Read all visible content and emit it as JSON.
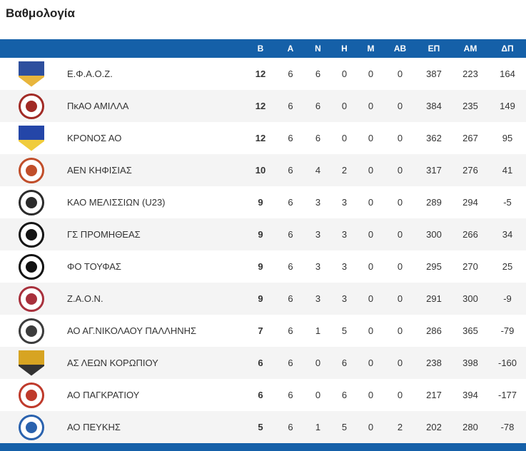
{
  "page": {
    "title": "Βαθμολογία"
  },
  "colors": {
    "header_bg": "#1560a8",
    "row_alt_bg": "#f4f4f4",
    "text": "#333333"
  },
  "table": {
    "columns": [
      "Β",
      "Α",
      "Ν",
      "Η",
      "Μ",
      "ΑΒ",
      "ΕΠ",
      "ΑΜ",
      "ΔΠ"
    ],
    "rows": [
      {
        "team": "Ε.Φ.Α.Ο.Ζ.",
        "logo": {
          "type": "shield",
          "colors": [
            "#2e4f9e",
            "#e8b53c"
          ]
        },
        "stats": [
          12,
          6,
          6,
          0,
          0,
          0,
          387,
          223,
          164
        ]
      },
      {
        "team": "ΠκΑΟ ΑΜΙΛΛΑ",
        "logo": {
          "type": "circle",
          "colors": [
            "#a12a25",
            "#eeeeee"
          ]
        },
        "stats": [
          12,
          6,
          6,
          0,
          0,
          0,
          384,
          235,
          149
        ]
      },
      {
        "team": "ΚΡΟΝΟΣ ΑΟ",
        "logo": {
          "type": "shield",
          "colors": [
            "#2446a8",
            "#f0cc3c"
          ]
        },
        "stats": [
          12,
          6,
          6,
          0,
          0,
          0,
          362,
          267,
          95
        ]
      },
      {
        "team": "ΑΕΝ ΚΗΦΙΣΙΑΣ",
        "logo": {
          "type": "circle",
          "colors": [
            "#c14e2a",
            "#f5f5f5"
          ]
        },
        "stats": [
          10,
          6,
          4,
          2,
          0,
          0,
          317,
          276,
          41
        ]
      },
      {
        "team": "ΚΑΟ ΜΕΛΙΣΣΙΩΝ (U23)",
        "logo": {
          "type": "circle",
          "colors": [
            "#2b2b2b",
            "#e0e0e0"
          ]
        },
        "stats": [
          9,
          6,
          3,
          3,
          0,
          0,
          289,
          294,
          -5
        ]
      },
      {
        "team": "ΓΣ ΠΡΟΜΗΘΕΑΣ",
        "logo": {
          "type": "circle",
          "colors": [
            "#141414",
            "#cc3333"
          ]
        },
        "stats": [
          9,
          6,
          3,
          3,
          0,
          0,
          300,
          266,
          34
        ]
      },
      {
        "team": "ΦΟ ΤΟΥΦΑΣ",
        "logo": {
          "type": "circle",
          "colors": [
            "#111111",
            "#111111"
          ]
        },
        "stats": [
          9,
          6,
          3,
          3,
          0,
          0,
          295,
          270,
          25
        ]
      },
      {
        "team": "Ζ.Α.Ο.Ν.",
        "logo": {
          "type": "circle",
          "colors": [
            "#a8303c",
            "#eeeeee"
          ]
        },
        "stats": [
          9,
          6,
          3,
          3,
          0,
          0,
          291,
          300,
          -9
        ]
      },
      {
        "team": "ΑΟ ΑΓ.ΝΙΚΟΛΑΟΥ ΠΑΛΛΗΝΗΣ",
        "logo": {
          "type": "circle",
          "colors": [
            "#3c3c3c",
            "#eeeeee"
          ]
        },
        "stats": [
          7,
          6,
          1,
          5,
          0,
          0,
          286,
          365,
          -79
        ]
      },
      {
        "team": "ΑΣ ΛΕΩΝ ΚΟΡΩΠΙΟΥ",
        "logo": {
          "type": "shield",
          "colors": [
            "#d7a422",
            "#333333"
          ]
        },
        "stats": [
          6,
          6,
          0,
          6,
          0,
          0,
          238,
          398,
          -160
        ]
      },
      {
        "team": "ΑΟ ΠΑΓΚΡΑΤΙΟΥ",
        "logo": {
          "type": "circle",
          "colors": [
            "#bf3a2b",
            "#ffffff"
          ]
        },
        "stats": [
          6,
          6,
          0,
          6,
          0,
          0,
          217,
          394,
          -177
        ]
      },
      {
        "team": "ΑΟ ΠΕΥΚΗΣ",
        "logo": {
          "type": "circle",
          "colors": [
            "#2a62ae",
            "#ffffff"
          ]
        },
        "stats": [
          5,
          6,
          1,
          5,
          0,
          2,
          202,
          280,
          -78
        ]
      }
    ]
  }
}
